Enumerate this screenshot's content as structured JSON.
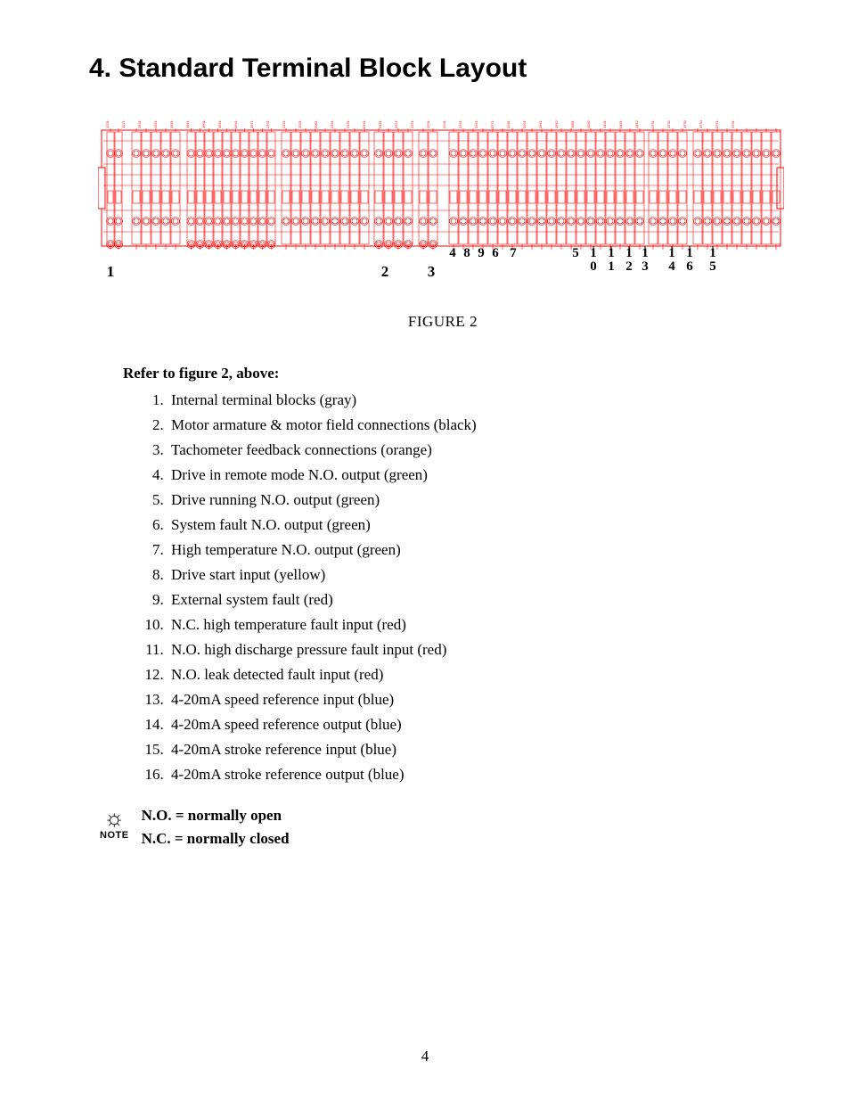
{
  "heading": "4.   Standard Terminal Block Layout",
  "figure": {
    "caption": "FIGURE 2",
    "colors": {
      "stroke": "#ff0000",
      "fill": "#ffffff",
      "text": "#000000"
    },
    "bottom_labels": [
      "1",
      "2",
      "3",
      "4",
      "8",
      "9",
      "6",
      "7",
      "5",
      "1",
      "0",
      "1",
      "1",
      "1",
      "2",
      "1",
      "3",
      "1",
      "4",
      "1",
      "6",
      "1",
      "5"
    ],
    "top_labels_small": [
      "1231",
      "1571",
      "1541",
      "1551",
      "1561",
      "1591",
      "1601",
      "1631",
      "1641",
      "1671",
      "1701",
      "2151",
      "2031",
      "2061",
      "2101",
      "2131",
      "2161",
      "2191",
      "2221",
      "2251",
      "2291",
      "2241",
      "2251",
      "2261",
      "2271",
      "2281",
      "2291",
      "1561",
      "1562",
      "1581",
      "1582",
      "1441",
      "1451",
      "1452",
      "1731",
      "1732",
      "1733",
      "1734",
      "1751",
      "1761",
      "1762",
      "2071",
      "2072",
      "1541",
      "1541",
      "1621",
      "1671",
      "1701",
      "2201",
      "2348",
      "2341",
      "2381",
      "2401",
      "2431",
      "2581",
      "2561",
      "2541",
      "2521",
      "2511",
      "2508",
      "2581"
    ]
  },
  "refer_text": "Refer to figure 2, above:",
  "legend": [
    "Internal terminal blocks  (gray)",
    "Motor armature & motor field connections (black)",
    "Tachometer feedback connections (orange)",
    "Drive in remote mode N.O. output (green)",
    "Drive running N.O. output (green)",
    "System fault N.O. output (green)",
    "High temperature N.O. output (green)",
    "Drive start input (yellow)",
    "External system fault (red)",
    "N.C. high temperature fault input (red)",
    "N.O. high discharge pressure fault input (red)",
    "N.O. leak detected fault input (red)",
    "4-20mA speed reference input (blue)",
    "4-20mA speed reference output (blue)",
    "4-20mA stroke reference input (blue)",
    "4-20mA stroke reference output (blue)"
  ],
  "note": {
    "label": "NOTE",
    "lines": [
      "N.O. = normally open",
      "N.C. = normally closed"
    ]
  },
  "page_number": "4"
}
